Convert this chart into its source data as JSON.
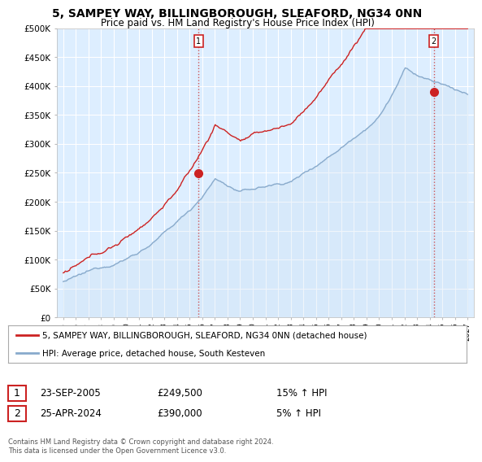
{
  "title_line1": "5, SAMPEY WAY, BILLINGBOROUGH, SLEAFORD, NG34 0NN",
  "title_line2": "Price paid vs. HM Land Registry's House Price Index (HPI)",
  "ylabel_ticks": [
    "£0",
    "£50K",
    "£100K",
    "£150K",
    "£200K",
    "£250K",
    "£300K",
    "£350K",
    "£400K",
    "£450K",
    "£500K"
  ],
  "ytick_values": [
    0,
    50000,
    100000,
    150000,
    200000,
    250000,
    300000,
    350000,
    400000,
    450000,
    500000
  ],
  "ylim": [
    0,
    500000
  ],
  "xtick_years": [
    1995,
    1996,
    1997,
    1998,
    1999,
    2000,
    2001,
    2002,
    2003,
    2004,
    2005,
    2006,
    2007,
    2008,
    2009,
    2010,
    2011,
    2012,
    2013,
    2014,
    2015,
    2016,
    2017,
    2018,
    2019,
    2020,
    2021,
    2022,
    2023,
    2024,
    2025,
    2026,
    2027
  ],
  "hpi_color": "#88aacc",
  "hpi_fill_color": "#cce0f0",
  "price_color": "#cc2222",
  "marker_color": "#cc2222",
  "dashed_line_color": "#cc4444",
  "bg_color": "#ffffff",
  "plot_bg_color": "#ddeeff",
  "grid_color": "#ffffff",
  "legend_label_red": "5, SAMPEY WAY, BILLINGBOROUGH, SLEAFORD, NG34 0NN (detached house)",
  "legend_label_blue": "HPI: Average price, detached house, South Kesteven",
  "point1_label": "1",
  "point1_date": "23-SEP-2005",
  "point1_price": "£249,500",
  "point1_hpi": "15% ↑ HPI",
  "point1_year": 2005.72,
  "point1_value": 249500,
  "point2_label": "2",
  "point2_date": "25-APR-2024",
  "point2_price": "£390,000",
  "point2_hpi": "5% ↑ HPI",
  "point2_year": 2024.32,
  "point2_value": 390000,
  "copyright_text": "Contains HM Land Registry data © Crown copyright and database right 2024.\nThis data is licensed under the Open Government Licence v3.0."
}
